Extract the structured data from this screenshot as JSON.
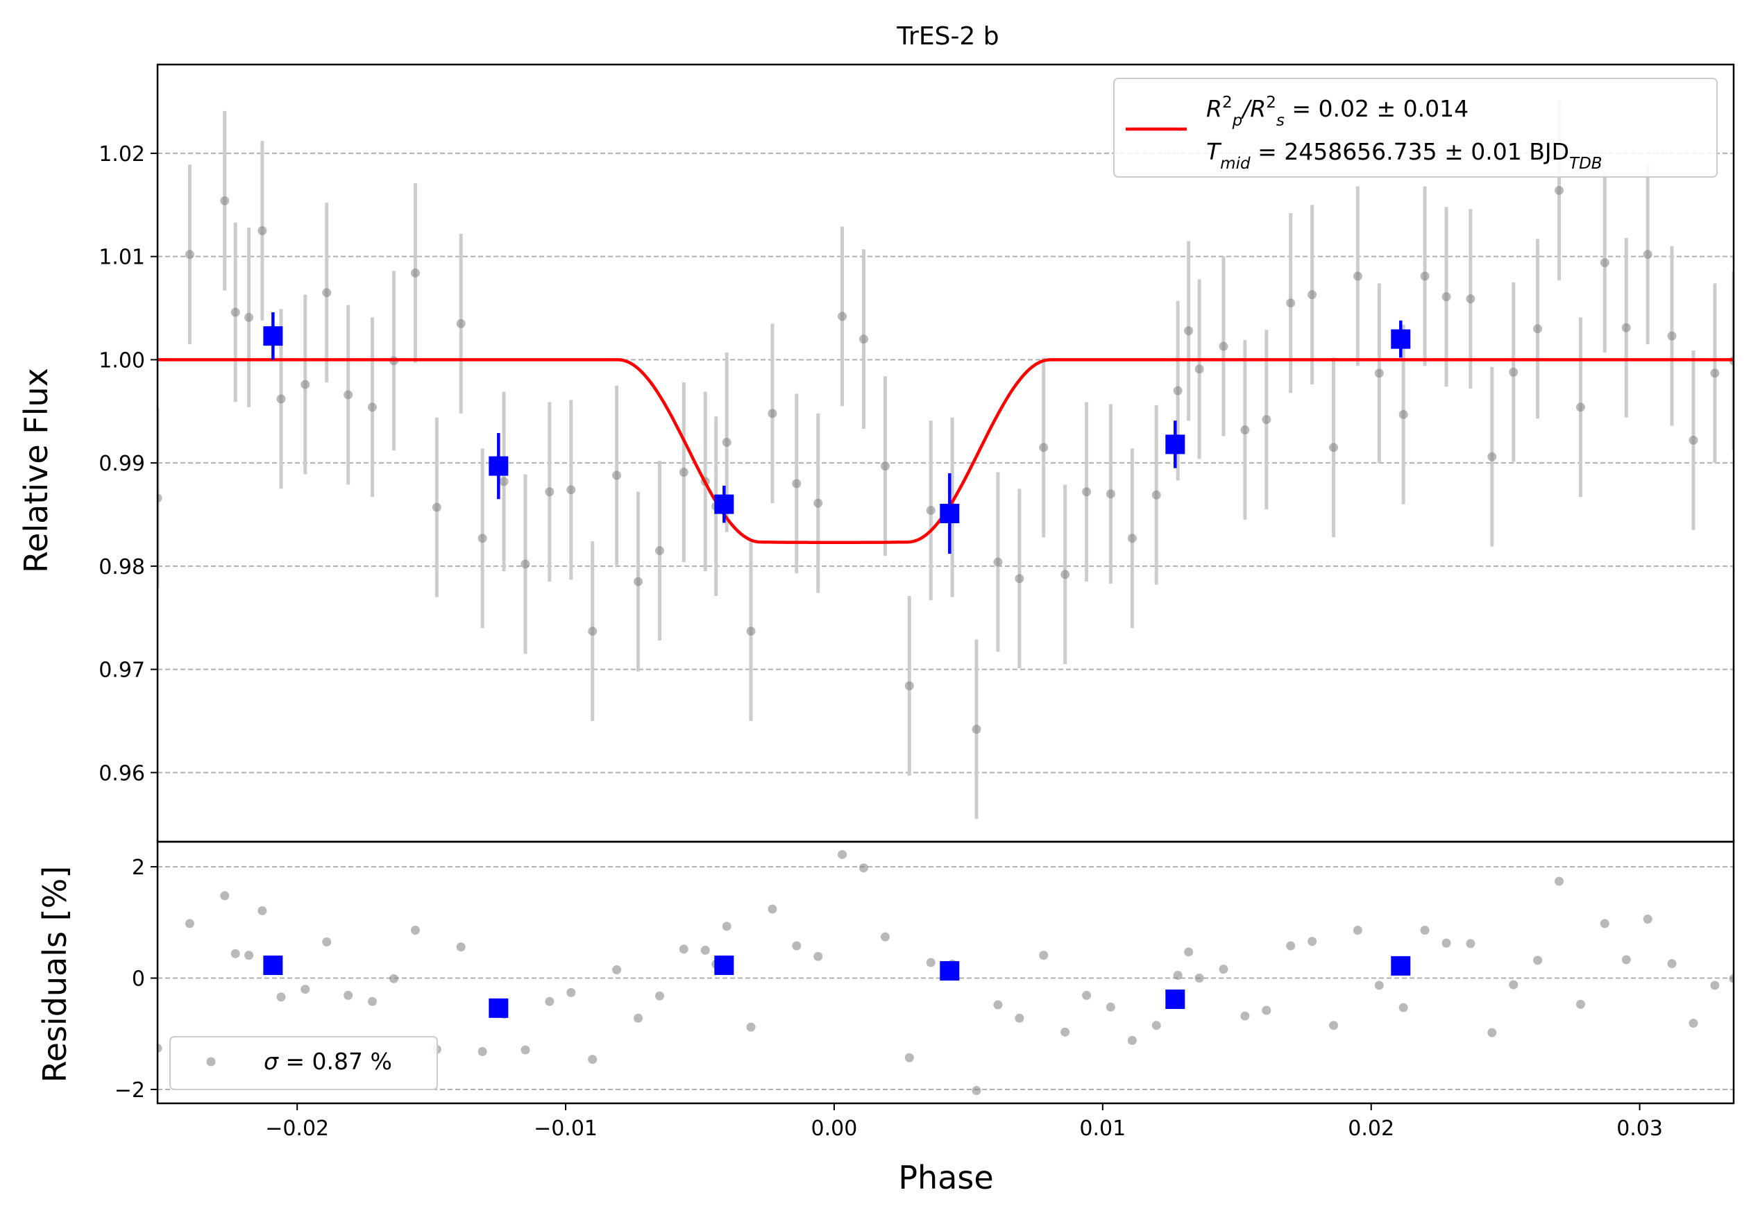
{
  "chart_data": {
    "type": "scatter",
    "title": "TrES-2 b",
    "xlabel": "Phase",
    "xlim": [
      -0.0252,
      0.0335
    ],
    "xticks": [
      -0.02,
      -0.01,
      0.0,
      0.01,
      0.02,
      0.03
    ],
    "xtick_labels": [
      "−0.02",
      "−0.01",
      "0.00",
      "0.01",
      "0.02",
      "0.03"
    ],
    "top_panel": {
      "ylabel": "Relative Flux",
      "ylim": [
        0.9533,
        1.0286
      ],
      "yticks": [
        0.96,
        0.97,
        0.98,
        0.99,
        1.0,
        1.01,
        1.02
      ],
      "ytick_labels": [
        "0.96",
        "0.97",
        "0.98",
        "0.99",
        "1.00",
        "1.01",
        "1.02"
      ],
      "grid": "horizontal dashed",
      "legend_position": "top-right",
      "legend_entry": {
        "color": "#ff0000",
        "line1_parts": [
          {
            "t": "R",
            "s": "i"
          },
          {
            "t": "2",
            "s": "sup"
          },
          {
            "t": "p",
            "s": "sub"
          },
          {
            "t": "/R",
            "s": "i"
          },
          {
            "t": "2",
            "s": "sup"
          },
          {
            "t": "s",
            "s": "sub"
          },
          {
            "t": " = 0.02 ± 0.014",
            "s": "n"
          }
        ],
        "line2_parts": [
          {
            "t": "T",
            "s": "i"
          },
          {
            "t": "mid",
            "s": "sub"
          },
          {
            "t": " = 2458656.735 ± 0.01 BJD",
            "s": "n"
          },
          {
            "t": "TDB",
            "s": "sub"
          }
        ]
      },
      "raw_points": {
        "color": "#808080",
        "error_color": "#cccccc",
        "x": [
          -0.0252,
          -0.024,
          -0.0227,
          -0.0223,
          -0.0218,
          -0.0213,
          -0.0206,
          -0.0197,
          -0.0189,
          -0.0181,
          -0.0172,
          -0.0164,
          -0.0156,
          -0.0148,
          -0.0139,
          -0.0131,
          -0.0123,
          -0.0115,
          -0.0106,
          -0.0098,
          -0.009,
          -0.0081,
          -0.0073,
          -0.0065,
          -0.0056,
          -0.0048,
          -0.0044,
          -0.004,
          -0.0031,
          -0.0023,
          -0.0014,
          -0.0006,
          0.0003,
          0.0011,
          0.0019,
          0.0028,
          0.0036,
          0.0044,
          0.0053,
          0.0061,
          0.0069,
          0.0078,
          0.0086,
          0.0094,
          0.0103,
          0.0111,
          0.012,
          0.0128,
          0.0132,
          0.0136,
          0.0145,
          0.0153,
          0.0161,
          0.017,
          0.0178,
          0.0186,
          0.0195,
          0.0203,
          0.0212,
          0.022,
          0.0228,
          0.0237,
          0.0245,
          0.0253,
          0.0262,
          0.027,
          0.0278,
          0.0287,
          0.0295,
          0.0303,
          0.0312,
          0.032,
          0.0328,
          0.0335
        ],
        "y": [
          0.9866,
          1.0102,
          1.0154,
          1.0046,
          1.0041,
          1.0125,
          0.9962,
          0.9976,
          1.0065,
          0.9966,
          0.9954,
          0.9999,
          1.0084,
          0.9857,
          1.0035,
          0.9827,
          0.9882,
          0.9802,
          0.9872,
          0.9874,
          0.9737,
          0.9888,
          0.9785,
          0.9815,
          0.9891,
          0.9882,
          0.9858,
          0.992,
          0.9737,
          0.9948,
          0.988,
          0.9861,
          1.0042,
          1.002,
          0.9897,
          0.9684,
          0.9854,
          0.9857,
          0.9642,
          0.9804,
          0.9788,
          0.9915,
          0.9792,
          0.9872,
          0.987,
          0.9827,
          0.9869,
          0.997,
          1.0028,
          0.9991,
          1.0013,
          0.9932,
          0.9942,
          1.0055,
          1.0063,
          0.9915,
          1.0081,
          0.9987,
          0.9947,
          1.0081,
          1.0061,
          1.0059,
          0.9906,
          0.9988,
          1.003,
          1.0164,
          0.9954,
          1.0094,
          1.0031,
          1.0102,
          1.0023,
          0.9922,
          0.9987,
          0.9999
        ],
        "yerr": 0.0087
      },
      "binned_points": {
        "color": "#0000ff",
        "x": [
          -0.0209,
          -0.0125,
          -0.0041,
          0.0043,
          0.0127,
          0.0211
        ],
        "y": [
          1.0023,
          0.9897,
          0.986,
          0.9851,
          0.9918,
          1.002
        ],
        "yerr": [
          0.0023,
          0.0032,
          0.0018,
          0.0039,
          0.0023,
          0.0018
        ]
      },
      "model": {
        "color": "#ff0000",
        "depth": 0.0177,
        "t_full": 0.0055,
        "t_total": 0.0161
      }
    },
    "bottom_panel": {
      "ylabel": "Residuals [%]",
      "ylim": [
        -2.25,
        2.45
      ],
      "yticks": [
        -2,
        0,
        2
      ],
      "ytick_labels": [
        "−2",
        "0",
        "2"
      ],
      "grid": "horizontal dashed",
      "legend_position": "bottom-left",
      "legend_parts": [
        {
          "t": "σ",
          "s": "i"
        },
        {
          "t": " = 0.87 %",
          "s": "n"
        }
      ],
      "raw_residuals": [
        -1.26,
        0.98,
        1.48,
        0.44,
        0.41,
        1.21,
        -0.34,
        -0.2,
        0.65,
        -0.31,
        -0.42,
        -0.01,
        0.86,
        -1.28,
        0.56,
        -1.32,
        -0.65,
        -1.29,
        -0.42,
        -0.26,
        -1.46,
        0.15,
        -0.72,
        -0.32,
        0.52,
        0.5,
        0.25,
        0.93,
        -0.88,
        1.24,
        0.58,
        0.39,
        2.22,
        1.98,
        0.74,
        -1.43,
        0.28,
        0.25,
        -2.02,
        -0.48,
        -0.72,
        0.41,
        -0.97,
        -0.31,
        -0.52,
        -1.12,
        -0.85,
        0.05,
        0.47,
        0.0,
        0.16,
        -0.68,
        -0.58,
        0.58,
        0.66,
        -0.85,
        0.86,
        -0.13,
        -0.53,
        0.86,
        0.63,
        0.62,
        -0.98,
        -0.12,
        0.32,
        1.74,
        -0.47,
        0.98,
        0.33,
        1.06,
        0.26,
        -0.81,
        -0.13,
        -0.01
      ],
      "binned_residuals": [
        0.23,
        -0.54,
        0.23,
        0.13,
        -0.38,
        0.22
      ]
    }
  }
}
